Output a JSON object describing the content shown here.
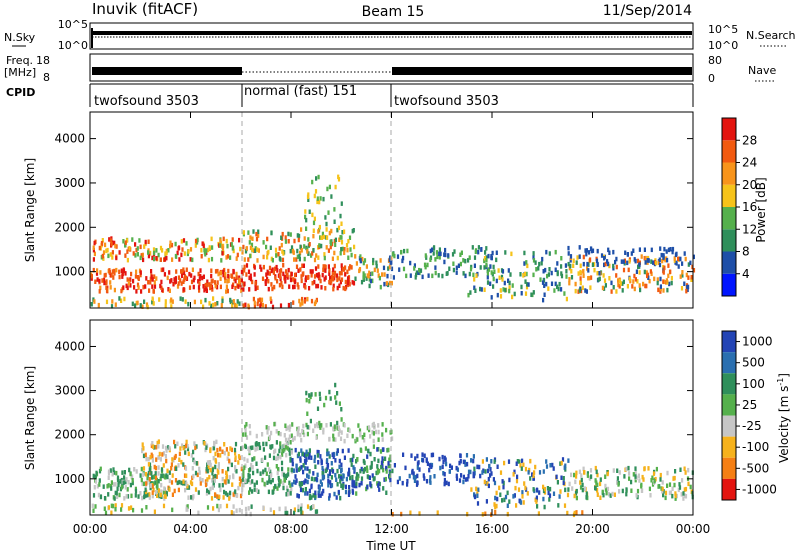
{
  "header": {
    "station": "Inuvik (fitACF)",
    "beam": "Beam 15",
    "date": "11/Sep/2014"
  },
  "sky_panel": {
    "left_label": "N.Sky",
    "right_label": "N.Search",
    "left_ticks": [
      "10^5",
      "10^0"
    ],
    "right_ticks": [
      "10^5",
      "10^0"
    ]
  },
  "freq_panel": {
    "left_label_1": "Freq.",
    "left_label_2": "[MHz]",
    "right_label": "Nave",
    "left_ticks": [
      "18",
      "8"
    ],
    "right_ticks": [
      "80",
      "0"
    ]
  },
  "cpid": {
    "label": "CPID",
    "segments": [
      {
        "start_hour": 0,
        "end_hour": 6,
        "name": "twofsound 3503"
      },
      {
        "start_hour": 6,
        "end_hour": 12,
        "name": "normal (fast) 151"
      },
      {
        "start_hour": 12,
        "end_hour": 24,
        "name": "twofsound 3503"
      }
    ]
  },
  "chart_data": [
    {
      "type": "heatmap",
      "title": "Power",
      "xlabel": "Time UT",
      "ylabel": "Slant Range [km]",
      "x_ticks": [
        "00:00",
        "04:00",
        "08:00",
        "12:00",
        "16:00",
        "20:00",
        "00:00"
      ],
      "y_ticks": [
        1000,
        2000,
        3000,
        4000
      ],
      "xlim_hours": [
        0,
        24
      ],
      "ylim_km": [
        180,
        4600
      ],
      "colorbar": {
        "label": "Power [dB]",
        "tick_labels": [
          "4",
          "8",
          "12",
          "16",
          "20",
          "24",
          "28"
        ],
        "colors": [
          "#0015ff",
          "#1e4fa8",
          "#2f8f5b",
          "#55b04c",
          "#f6c31a",
          "#f8941b",
          "#f25a10",
          "#e3140f"
        ]
      }
    },
    {
      "type": "heatmap",
      "title": "Velocity",
      "xlabel": "Time UT",
      "ylabel": "Slant Range [km]",
      "x_ticks": [
        "00:00",
        "04:00",
        "08:00",
        "12:00",
        "16:00",
        "20:00",
        "00:00"
      ],
      "y_ticks": [
        1000,
        2000,
        3000,
        4000
      ],
      "xlim_hours": [
        0,
        24
      ],
      "ylim_km": [
        180,
        4600
      ],
      "colorbar": {
        "label": "Velocity [m s",
        "label_sup": "-1",
        "label_end": "]",
        "tick_labels": [
          "1000",
          "500",
          "100",
          "25",
          "-25",
          "-100",
          "-500",
          "-1000"
        ],
        "colors": [
          "#2344b5",
          "#2a6fb0",
          "#2f8f5b",
          "#55b04c",
          "#c6c6c6",
          "#f6b21c",
          "#f57f14",
          "#e3140f"
        ]
      }
    }
  ],
  "time_axis": {
    "label": "Time UT"
  }
}
